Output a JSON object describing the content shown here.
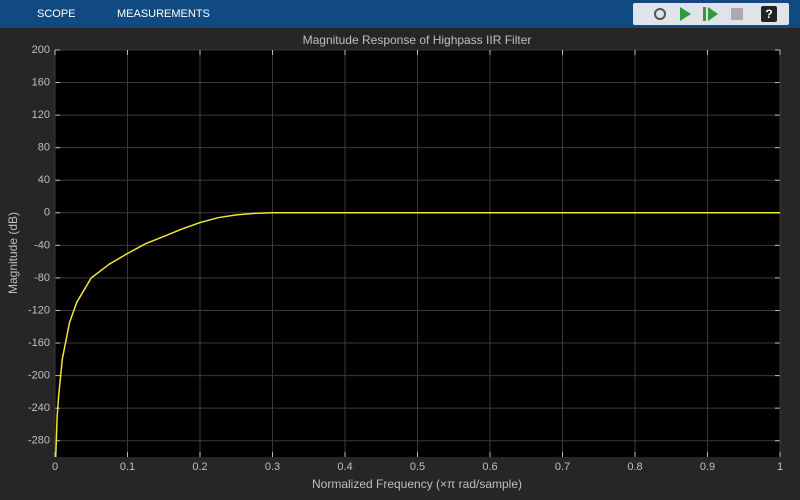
{
  "toolbar": {
    "tabs": [
      "SCOPE",
      "MEASUREMENTS"
    ],
    "help": "?"
  },
  "chart_data": {
    "type": "line",
    "title": "Magnitude Response of Highpass IIR Filter",
    "xlabel": "Normalized Frequency (×π rad/sample)",
    "ylabel": "Magnitude (dB)",
    "x": [
      0.001,
      0.003,
      0.005,
      0.01,
      0.02,
      0.03,
      0.05,
      0.075,
      0.1,
      0.125,
      0.15,
      0.175,
      0.2,
      0.225,
      0.25,
      0.275,
      0.3,
      0.4,
      0.5,
      0.6,
      0.7,
      0.8,
      0.9,
      1
    ],
    "values": [
      -300,
      -250,
      -225,
      -180,
      -135,
      -110,
      -80,
      -63,
      -50,
      -38,
      -29,
      -20,
      -12,
      -6,
      -2.5,
      -0.7,
      0,
      0,
      0,
      0,
      0,
      0,
      0,
      0
    ],
    "color": "#f2e63a",
    "xlim": [
      0,
      1
    ],
    "xticks": [
      0,
      0.1,
      0.2,
      0.3,
      0.4,
      0.5,
      0.6,
      0.7,
      0.8,
      0.9,
      1
    ],
    "ylim": [
      -300,
      200
    ],
    "yticks": [
      -280,
      -240,
      -200,
      -160,
      -120,
      -80,
      -40,
      0,
      40,
      80,
      120,
      160,
      200
    ],
    "grid": true
  }
}
